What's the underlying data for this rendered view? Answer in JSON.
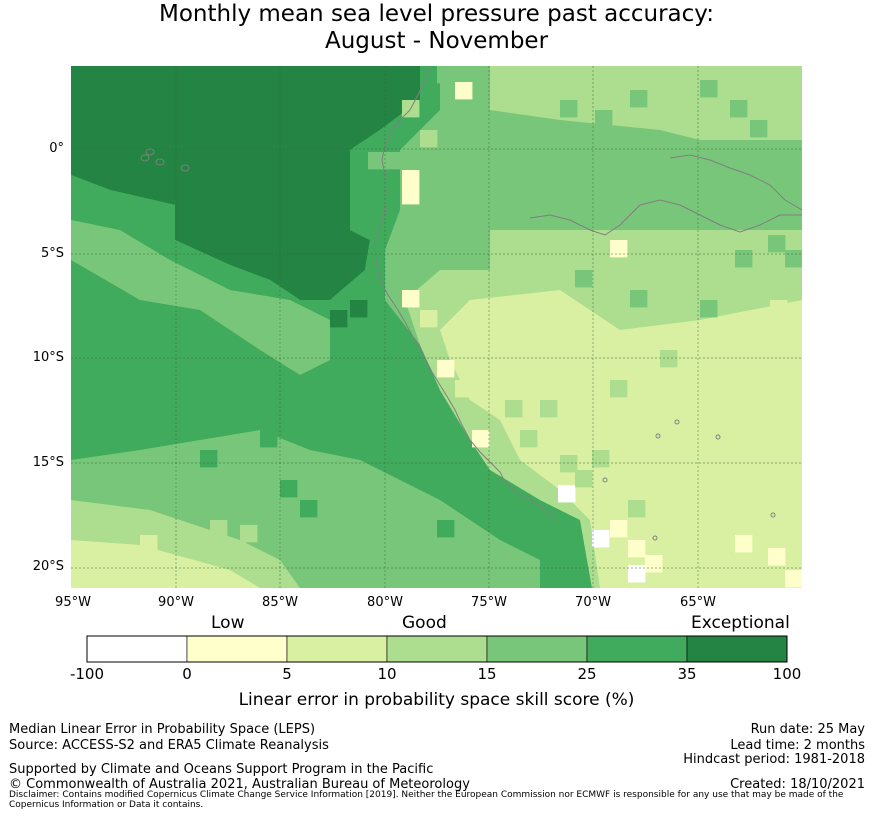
{
  "title_line1": "Monthly mean sea level pressure past accuracy:",
  "title_line2": "August - November",
  "lat_labels": [
    "0°",
    "5°S",
    "10°S",
    "15°S",
    "20°S"
  ],
  "lon_labels": [
    "95°W",
    "90°W",
    "85°W",
    "80°W",
    "75°W",
    "70°W",
    "65°W"
  ],
  "colorbar": {
    "categories": [
      "Low",
      "Good",
      "Exceptional"
    ],
    "ticks": [
      "-100",
      "0",
      "5",
      "10",
      "15",
      "25",
      "35",
      "100"
    ],
    "colors": [
      "#ffffff",
      "#ffffcc",
      "#d9f0a3",
      "#addd8e",
      "#78c679",
      "#41ab5d",
      "#238443"
    ],
    "title": "Linear error in probability space skill score (%)"
  },
  "footer": {
    "left_line1": "Median Linear Error in Probability Space (LEPS)",
    "left_line2": "Source: ACCESS-S2 and ERA5 Climate Reanalysis",
    "left_line3": "Supported by Climate and Oceans Support Program in the Pacific",
    "left_line4": "© Commonwealth of Australia 2021, Australian Bureau of Meteorology",
    "run_date": "Run date: 25 May",
    "lead_time": "Lead time: 2 months",
    "hindcast": "Hindcast period: 1981-2018",
    "created": "Created: 18/10/2021",
    "disclaimer": "Disclaimer: Contains modified Copernicus Climate Change Service Information [2019]. Neither the European Commission nor ECMWF is responsible for any use that may be made of the Copernicus Information or Data it contains."
  },
  "map_colors": {
    "c1": "#ffffcc",
    "c2": "#d9f0a3",
    "c3": "#addd8e",
    "c4": "#78c679",
    "c5": "#41ab5d",
    "c6": "#238443",
    "coast": "#808080",
    "grid": "#3a6b3a"
  }
}
